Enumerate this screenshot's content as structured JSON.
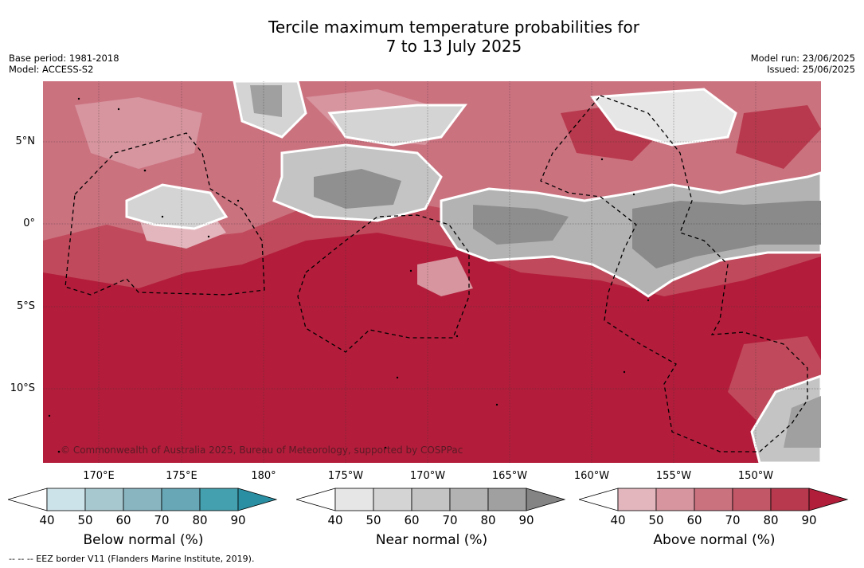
{
  "title_line1": "Tercile maximum temperature probabilities for",
  "title_line2": "7 to 13 July 2025",
  "meta_left": {
    "base_period": "Base period: 1981-2018",
    "model": "Model: ACCESS-S2"
  },
  "meta_right": {
    "model_run": "Model run: 23/06/2025",
    "issued": "Issued: 25/06/2025"
  },
  "lat_labels": [
    "5°N",
    "0°",
    "5°S",
    "10°S"
  ],
  "lon_labels": [
    "170°E",
    "175°E",
    "180°",
    "175°W",
    "170°W",
    "165°W",
    "160°W",
    "155°W",
    "150°W"
  ],
  "copyright": "© Commonwealth of Australia 2025, Bureau of Meteorology, supported by COSPPac",
  "colorbars": [
    {
      "title": "Below normal (%)",
      "ticks": [
        "40",
        "50",
        "60",
        "70",
        "80",
        "90"
      ],
      "colors": [
        "#cde3ea",
        "#a8c8cf",
        "#88b5c0",
        "#67a7b6",
        "#449fae",
        "#2a8fa2"
      ]
    },
    {
      "title": "Near normal (%)",
      "ticks": [
        "40",
        "50",
        "60",
        "70",
        "80",
        "90"
      ],
      "colors": [
        "#e6e6e6",
        "#d4d4d4",
        "#c4c4c4",
        "#b3b3b3",
        "#a0a0a0",
        "#848484"
      ]
    },
    {
      "title": "Above normal (%)",
      "ticks": [
        "40",
        "50",
        "60",
        "70",
        "80",
        "90"
      ],
      "colors": [
        "#e3b6bd",
        "#d7959f",
        "#cb727f",
        "#c15767",
        "#b8394d",
        "#b01e3a"
      ]
    }
  ],
  "footer": "--  --  -- EEZ border V11 (Flanders Marine Institute, 2019)."
}
